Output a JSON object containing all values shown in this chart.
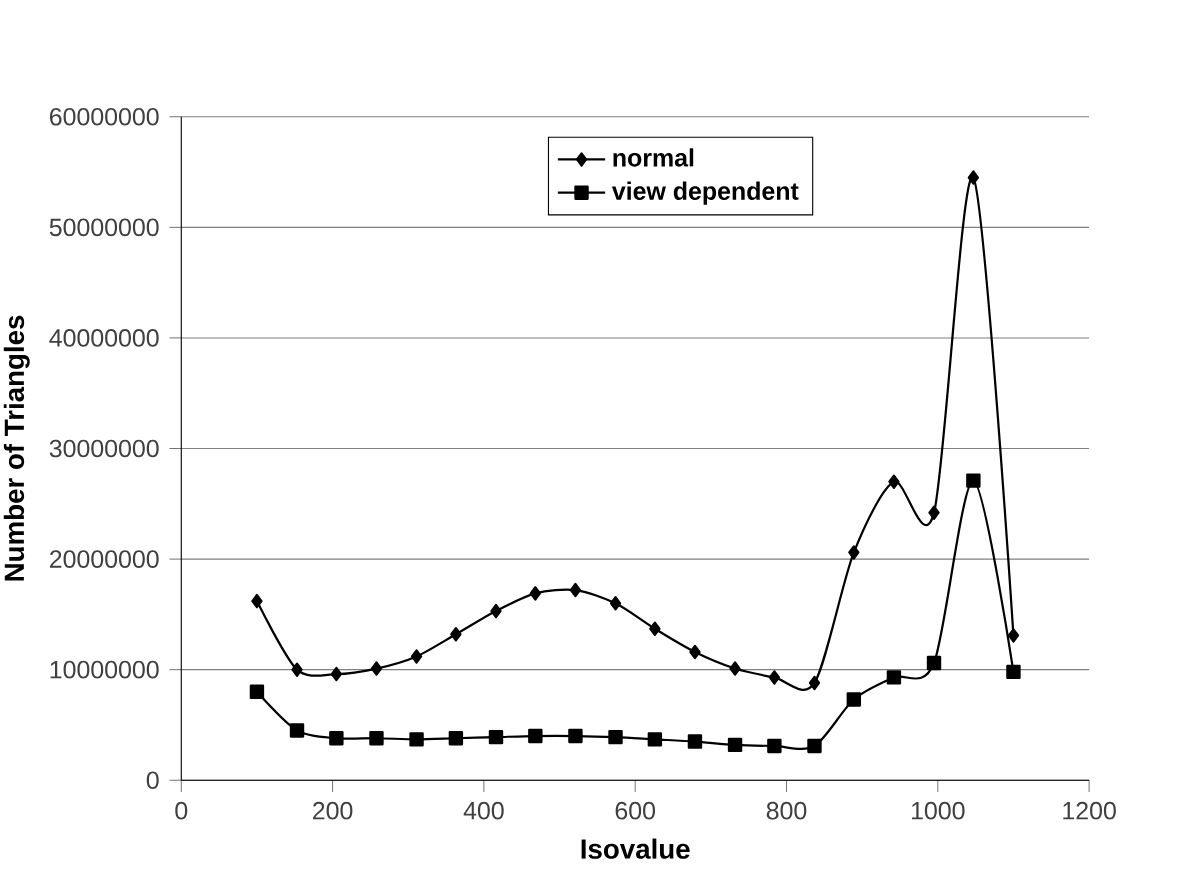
{
  "chart_data": {
    "type": "line",
    "xlabel": "Isovalue",
    "ylabel": "Number of Triangles",
    "x": [
      100,
      153,
      205,
      258,
      311,
      363,
      416,
      468,
      521,
      574,
      626,
      679,
      732,
      784,
      837,
      889,
      942,
      995,
      1047,
      1100
    ],
    "series": [
      {
        "name": "normal",
        "color": "#000000",
        "marker": "diamond",
        "values": [
          16200000,
          10000000,
          9600000,
          10100000,
          11200000,
          13200000,
          15300000,
          16900000,
          17200000,
          16000000,
          13700000,
          11600000,
          10100000,
          9300000,
          8800000,
          20600000,
          27000000,
          24200000,
          54500000,
          13100000
        ]
      },
      {
        "name": "view dependent",
        "color": "#000000",
        "marker": "square",
        "values": [
          8000000,
          4500000,
          3800000,
          3800000,
          3700000,
          3800000,
          3900000,
          4000000,
          4000000,
          3900000,
          3700000,
          3500000,
          3200000,
          3100000,
          3100000,
          7300000,
          9300000,
          10600000,
          27100000,
          9800000
        ]
      }
    ],
    "xlim": [
      0,
      1200
    ],
    "xticks": [
      0,
      200,
      400,
      600,
      800,
      1000,
      1200
    ],
    "ylim": [
      0,
      60000000
    ],
    "yticks": [
      0,
      10000000,
      20000000,
      30000000,
      40000000,
      50000000,
      60000000
    ],
    "grid": "y",
    "legend": "top"
  }
}
